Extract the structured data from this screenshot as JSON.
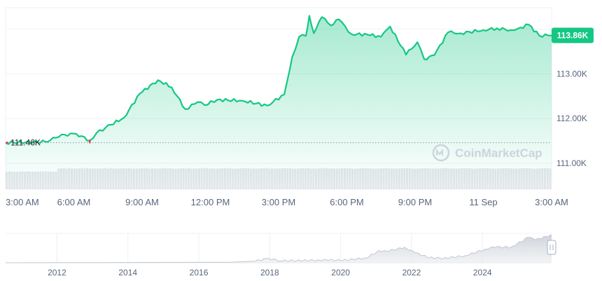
{
  "chart_data": [
    {
      "type": "area",
      "x_ticks": [
        "3:00 AM",
        "6:00 AM",
        "9:00 AM",
        "12:00 PM",
        "3:00 PM",
        "6:00 PM",
        "9:00 PM",
        "11 Sep",
        "3:00 AM"
      ],
      "y_ticks": [
        "113.00K",
        "112.00K",
        "111.00K"
      ],
      "y_tick_values": [
        113000,
        112000,
        111000
      ],
      "ylim": [
        110420,
        114480
      ],
      "x_range_hours": [
        0,
        24
      ],
      "start_value": 111460,
      "start_label": "111.46K",
      "current_label": "113.86K",
      "current_value": 113860,
      "line_color": "#16c784",
      "badge_color": "#16c784",
      "start_marker_color": "#ea3943",
      "series": [
        {
          "x": [
            0,
            1.75,
            2.2,
            2.6,
            3.1,
            3.7,
            4.0,
            4.4,
            5.2,
            5.9,
            6.7,
            7.3,
            7.9,
            8.45,
            8.75,
            9.3,
            10.4,
            11.5,
            12.25,
            12.6,
            12.9,
            13.2,
            13.35,
            13.55,
            13.9,
            14.3,
            14.65,
            15.2,
            15.9,
            16.5,
            16.9,
            17.6,
            18.1,
            18.4,
            18.85,
            19.45,
            20.0,
            21.0,
            21.6,
            22.2,
            22.5,
            23.0,
            23.45,
            24.0
          ],
          "values": [
            111460,
            111480,
            111570,
            111640,
            111660,
            111510,
            111680,
            111800,
            112020,
            112560,
            112860,
            112700,
            112210,
            112370,
            112300,
            112420,
            112400,
            112290,
            112540,
            113380,
            113830,
            113850,
            114300,
            113910,
            114270,
            114080,
            114220,
            113890,
            113880,
            113830,
            114060,
            113430,
            113710,
            113330,
            113420,
            113930,
            113910,
            113980,
            114020,
            113980,
            114010,
            114100,
            113860,
            113860
          ]
        }
      ],
      "volume_level": 0.72
    },
    {
      "type": "area",
      "x_ticks": [
        "2012",
        "2014",
        "2016",
        "2018",
        "2020",
        "2022",
        "2024"
      ],
      "x_tick_values": [
        2012,
        2014,
        2016,
        2018,
        2020,
        2022,
        2024
      ],
      "xlim": [
        2010.55,
        2025.95
      ],
      "series": [
        {
          "x": [
            2010.55,
            2013.8,
            2016.9,
            2017.6,
            2017.95,
            2018.3,
            2019.4,
            2019.6,
            2020.0,
            2020.7,
            2021.1,
            2021.3,
            2021.8,
            2022.1,
            2022.5,
            2022.9,
            2023.5,
            2024.1,
            2024.3,
            2024.8,
            2025.3,
            2025.5,
            2025.95
          ],
          "values": [
            0.0,
            0.01,
            0.02,
            0.06,
            0.16,
            0.07,
            0.09,
            0.11,
            0.08,
            0.17,
            0.43,
            0.41,
            0.55,
            0.36,
            0.18,
            0.16,
            0.25,
            0.49,
            0.57,
            0.55,
            0.91,
            0.82,
            1.0
          ]
        }
      ]
    }
  ],
  "watermark": {
    "text": "CoinMarketCap",
    "icon": "coinmarketcap-logo-icon"
  }
}
